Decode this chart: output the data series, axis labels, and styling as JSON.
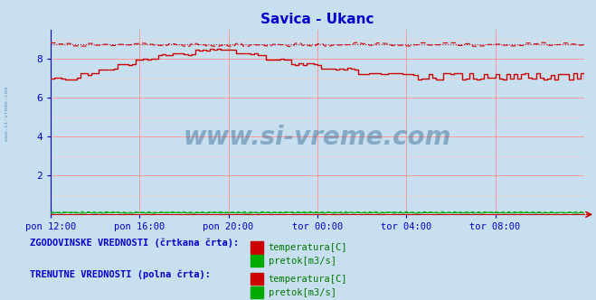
{
  "title": "Savica - Ukanc",
  "title_color": "#0000cc",
  "bg_color": "#c8dff0",
  "plot_bg_color": "#c8dff0",
  "grid_color_major": "#ff9999",
  "grid_color_minor": "#ffcccc",
  "xlabel_ticks": [
    "pon 12:00",
    "pon 16:00",
    "pon 20:00",
    "tor 00:00",
    "tor 04:00",
    "tor 08:00"
  ],
  "xlabel_ticks_pos": [
    0,
    48,
    96,
    144,
    192,
    240
  ],
  "xmin": 0,
  "xmax": 288,
  "ymin": 0,
  "ymax": 9.5,
  "yticks": [
    2,
    4,
    6,
    8
  ],
  "watermark_text": "www.si-vreme.com",
  "watermark_color": "#1a5580",
  "watermark_alpha": 0.38,
  "temp_solid_color": "#cc0000",
  "temp_dashed_color": "#cc0000",
  "pretok_solid_color": "#00aa00",
  "pretok_dashed_color": "#00aa00",
  "legend_text_color": "#0000cc",
  "legend_value_color": "#007700",
  "n_points": 289
}
